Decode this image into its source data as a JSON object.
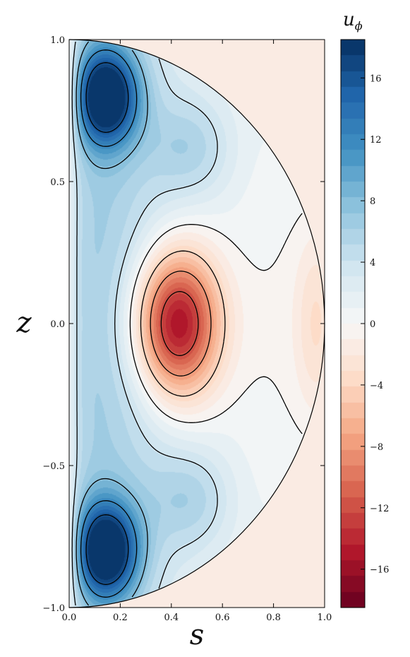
{
  "chart_data": {
    "type": "heatmap",
    "title": "",
    "xlabel": "s",
    "ylabel": "z",
    "xlim": [
      0.0,
      1.0
    ],
    "ylim": [
      -1.0,
      1.0
    ],
    "x_ticks": [
      0.0,
      0.2,
      0.4,
      0.6,
      0.8,
      1.0
    ],
    "x_tick_labels": [
      "0.0",
      "0.2",
      "0.4",
      "0.6",
      "0.8",
      "1.0"
    ],
    "y_ticks": [
      -1.0,
      -0.5,
      0.0,
      0.5,
      1.0
    ],
    "y_tick_labels": [
      "−1.0",
      "−0.5",
      "0.0",
      "0.5",
      "1.0"
    ],
    "colorbar": {
      "label_main": "u",
      "label_sub": "ϕ",
      "range": [
        -18.5,
        18.5
      ],
      "ticks": [
        -16,
        -12,
        -8,
        -4,
        0,
        4,
        8,
        12,
        16
      ],
      "tick_labels": [
        "−16",
        "−12",
        "−8",
        "−4",
        "0",
        "4",
        "8",
        "12",
        "16"
      ],
      "levels": 36,
      "colormap": "RdBu"
    },
    "field": {
      "domain": "half-disk s²+z² ≤ 1, s ≥ 0",
      "outside_value": -1.5,
      "features": [
        {
          "kind": "max",
          "s": 0.14,
          "z": 0.8,
          "value": 18.0
        },
        {
          "kind": "max",
          "s": 0.14,
          "z": -0.8,
          "value": 18.0
        },
        {
          "kind": "min",
          "s": 0.42,
          "z": 0.0,
          "value": -18.0
        },
        {
          "kind": "min",
          "s": 0.97,
          "z": 0.0,
          "value": -4.0
        }
      ]
    },
    "contour_levels": [
      -16,
      -12,
      -8,
      -4,
      0,
      4,
      8,
      12,
      16
    ],
    "grid": false,
    "colors": {
      "max": "#053061",
      "mid": "#f7f7f7",
      "min": "#67001f",
      "contour": "#000000"
    }
  }
}
